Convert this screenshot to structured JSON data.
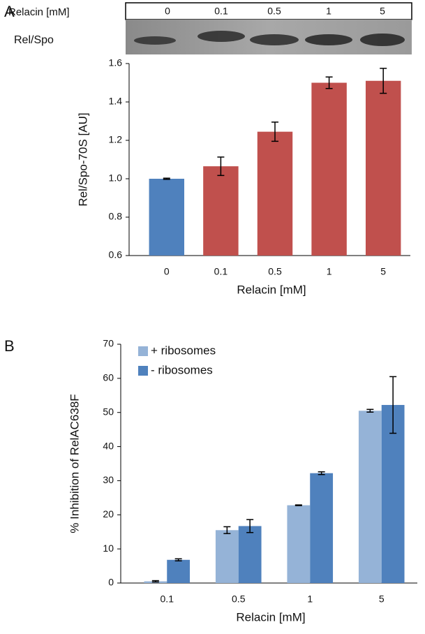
{
  "panel_labels": [
    "A",
    "B"
  ],
  "blot": {
    "header": "Relacin [mM]",
    "lanes": [
      "0",
      "0.1",
      "0.5",
      "1",
      "5"
    ],
    "row_label": "Rel/Spo"
  },
  "chart_data": [
    {
      "type": "bar",
      "categories": [
        "0",
        "0.1",
        "0.5",
        "1",
        "5"
      ],
      "values": [
        1.0,
        1.065,
        1.245,
        1.5,
        1.51
      ],
      "errors": [
        0.003,
        0.048,
        0.05,
        0.03,
        0.065
      ],
      "colors": [
        "#4f81bd",
        "#c0504d",
        "#c0504d",
        "#c0504d",
        "#c0504d"
      ],
      "ylim": [
        0.6,
        1.6
      ],
      "yticks": [
        0.6,
        0.8,
        {
          "value": 1,
          "label": "1.0"
        },
        1.2,
        1.4,
        1.6
      ],
      "ylabel": "Rel/Spo-70S [AU]",
      "xlabel": "Relacin [mM]",
      "grid": false
    },
    {
      "type": "bar",
      "categories": [
        "0.1",
        "0.5",
        "1",
        "5"
      ],
      "series": [
        {
          "name": "+ ribosomes",
          "color": "#95b3d7",
          "values": [
            0.5,
            15.5,
            22.8,
            50.5
          ],
          "errors": [
            0.2,
            1.0,
            0.1,
            0.4
          ]
        },
        {
          "name": "- ribosomes",
          "color": "#4f81bd",
          "values": [
            6.8,
            16.7,
            32.2,
            52.2
          ],
          "errors": [
            0.3,
            1.9,
            0.4,
            8.3
          ]
        }
      ],
      "ylim": [
        0,
        70
      ],
      "yticks": [
        0,
        10,
        20,
        30,
        40,
        50,
        60,
        70
      ],
      "ylabel": "% Inhibition of  RelAC638F",
      "xlabel": "Relacin [mM]",
      "grid": false,
      "legend": "top-left"
    }
  ]
}
